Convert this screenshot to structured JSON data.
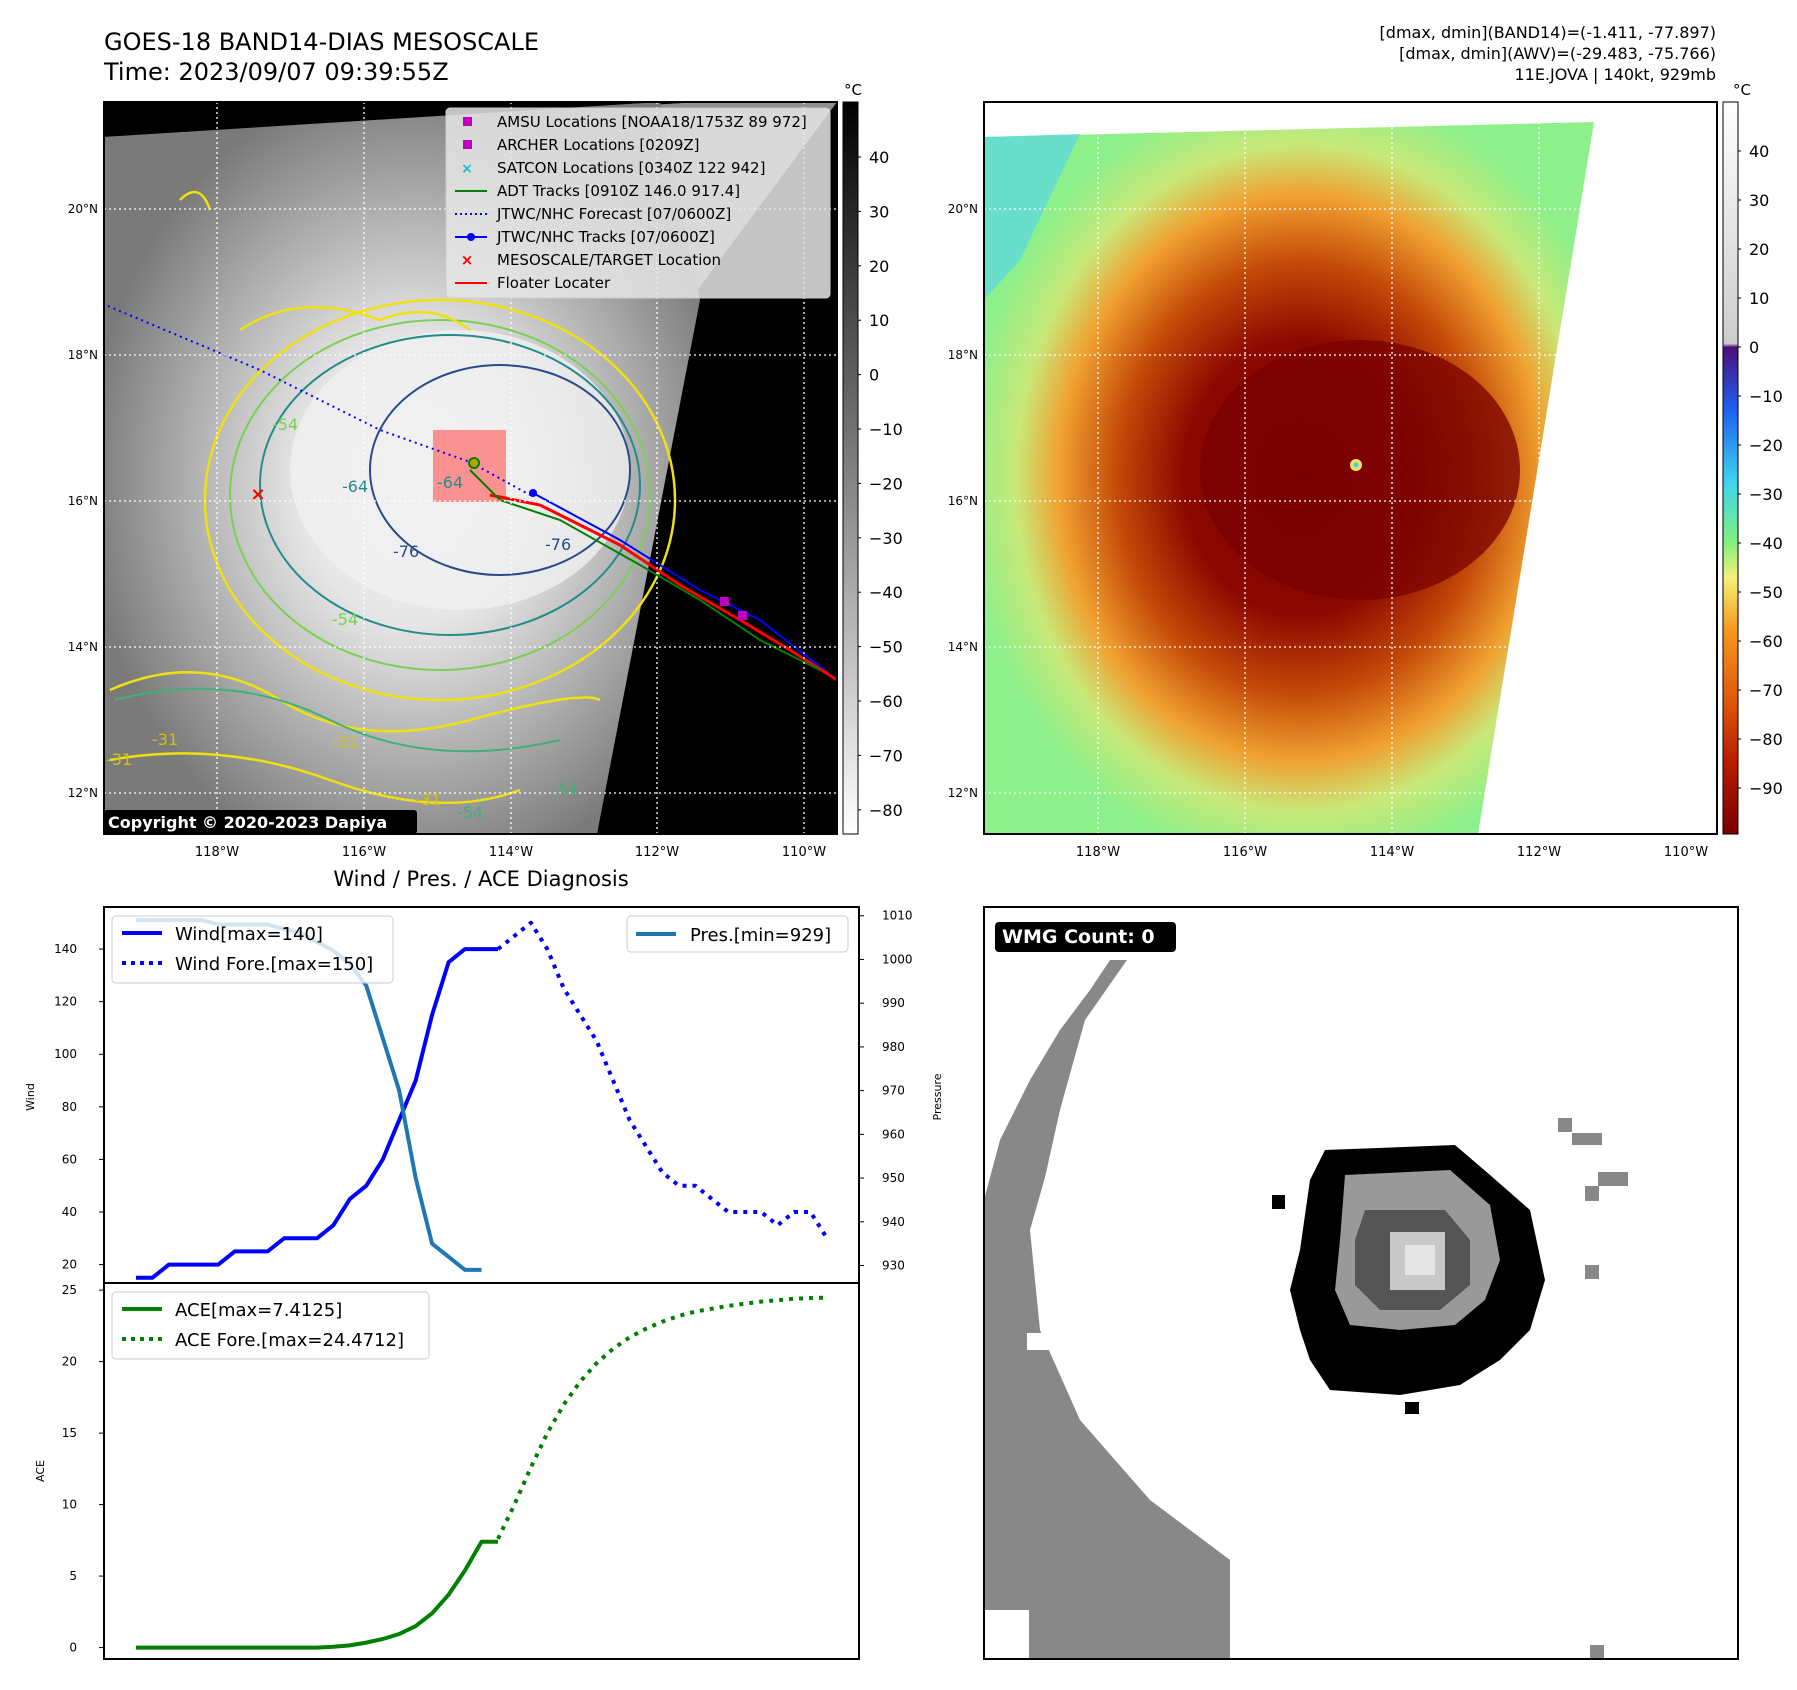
{
  "header": {
    "title_line1": "GOES-18 BAND14-DIAS MESOSCALE",
    "title_line2": "Time: 2023/09/07 09:39:55Z",
    "info_line1": "[dmax, dmin](BAND14)=(-1.411, -77.897)",
    "info_line2": "[dmax, dmin](AWV)=(-29.483, -75.766)",
    "info_line3": "11E.JOVA | 140kt, 929mb"
  },
  "maps": {
    "lon_labels": [
      "118°W",
      "116°W",
      "114°W",
      "112°W",
      "110°W"
    ],
    "lat_labels": [
      "20°N",
      "18°N",
      "16°N",
      "14°N",
      "12°N"
    ],
    "copyright": "Copyright © 2020-2023 Dapiya",
    "contour_labels": [
      "-54",
      "-64",
      "-76",
      "-76",
      "-54",
      "-31",
      "-31",
      "-31",
      "-54",
      "-54",
      "-31",
      "-64"
    ]
  },
  "legend": {
    "items": [
      {
        "label": "AMSU Locations [NOAA18/1753Z 89 972]",
        "color": "#bf00bf",
        "marker": "square"
      },
      {
        "label": "ARCHER Locations [0209Z]",
        "color": "#bf00bf",
        "marker": "square"
      },
      {
        "label": "SATCON Locations [0340Z 122 942]",
        "color": "#17becf",
        "marker": "x"
      },
      {
        "label": "ADT Tracks [0910Z 146.0 917.4]",
        "color": "#008000",
        "marker": "line"
      },
      {
        "label": "JTWC/NHC Forecast [07/0600Z]",
        "color": "#0000ff",
        "marker": "dotted"
      },
      {
        "label": "JTWC/NHC Tracks [07/0600Z]",
        "color": "#0000ff",
        "marker": "line-dot"
      },
      {
        "label": "MESOSCALE/TARGET Location",
        "color": "#ff0000",
        "marker": "x"
      },
      {
        "label": "Floater Locater",
        "color": "#ff0000",
        "marker": "line"
      }
    ]
  },
  "colorbars": {
    "gray": {
      "unit": "°C",
      "ticks": [
        "40",
        "30",
        "20",
        "10",
        "0",
        "−10",
        "−20",
        "−30",
        "−40",
        "−50",
        "−60",
        "−70",
        "−80"
      ]
    },
    "color": {
      "unit": "°C",
      "ticks": [
        "40",
        "30",
        "20",
        "10",
        "0",
        "−10",
        "−20",
        "−30",
        "−40",
        "−50",
        "−60",
        "−70",
        "−80",
        "−90"
      ]
    }
  },
  "wmg": {
    "label": "WMG Count: 0"
  },
  "chart_data": [
    {
      "type": "line",
      "title": "Wind / Pres. / ACE Diagnosis",
      "ylabel": "Wind",
      "ylabel_right": "Pressure",
      "ylim": [
        13,
        156
      ],
      "ylim_right": [
        926,
        1012
      ],
      "yticks": [
        20,
        40,
        60,
        80,
        100,
        120,
        140
      ],
      "yticks_right": [
        930,
        940,
        950,
        960,
        970,
        980,
        990,
        1000,
        1010
      ],
      "x": [
        0,
        1,
        2,
        3,
        4,
        5,
        6,
        7,
        8,
        9,
        10,
        11,
        12,
        13,
        14,
        15,
        16,
        17,
        18,
        19,
        20,
        21,
        22,
        23,
        24,
        25,
        26,
        27,
        28,
        29,
        30,
        31,
        32,
        33,
        34,
        35,
        36,
        37,
        38,
        39,
        40,
        41,
        42
      ],
      "series": [
        {
          "name": "Wind[max=140]",
          "color": "#0000ff",
          "style": "solid",
          "x": [
            0,
            1,
            2,
            3,
            4,
            5,
            6,
            7,
            8,
            9,
            10,
            11,
            12,
            13,
            14,
            15,
            16,
            17,
            18,
            19,
            20,
            21,
            22
          ],
          "values": [
            15,
            15,
            20,
            20,
            20,
            20,
            25,
            25,
            25,
            30,
            30,
            30,
            35,
            45,
            50,
            60,
            75,
            90,
            115,
            135,
            140,
            140,
            140
          ]
        },
        {
          "name": "Wind Fore.[max=150]",
          "color": "#0000ff",
          "style": "dotted",
          "x": [
            22,
            23,
            24,
            25,
            26,
            27,
            28,
            29,
            30,
            31,
            32,
            33,
            34,
            35,
            36,
            37,
            38,
            39,
            40,
            41,
            42
          ],
          "values": [
            140,
            145,
            150,
            140,
            125,
            115,
            105,
            90,
            75,
            65,
            55,
            50,
            50,
            45,
            40,
            40,
            40,
            35,
            40,
            40,
            30
          ]
        },
        {
          "name": "Pres.[min=929]",
          "color": "#1f77b4",
          "style": "solid",
          "axis": "right",
          "x": [
            0,
            1,
            2,
            3,
            4,
            5,
            6,
            7,
            8,
            9,
            10,
            11,
            12,
            13,
            14,
            15,
            16,
            17,
            18,
            19,
            20,
            21
          ],
          "values": [
            1009,
            1009,
            1009,
            1009,
            1009,
            1008,
            1008,
            1008,
            1008,
            1007,
            1006,
            1004,
            1002,
            999,
            994,
            982,
            970,
            950,
            935,
            932,
            929,
            929
          ]
        }
      ]
    },
    {
      "type": "line",
      "ylabel": "ACE",
      "ylim": [
        -0.8,
        25.5
      ],
      "yticks": [
        0,
        5,
        10,
        15,
        20,
        25
      ],
      "series": [
        {
          "name": "ACE[max=7.4125]",
          "color": "#008000",
          "style": "solid",
          "x": [
            0,
            2,
            4,
            6,
            8,
            10,
            11,
            12,
            13,
            14,
            15,
            16,
            17,
            18,
            19,
            20,
            21,
            22
          ],
          "values": [
            0,
            0,
            0,
            0,
            0,
            0,
            0,
            0.05,
            0.15,
            0.35,
            0.6,
            0.95,
            1.5,
            2.4,
            3.7,
            5.4,
            7.4,
            7.4
          ]
        },
        {
          "name": "ACE Fore.[max=24.4712]",
          "color": "#008000",
          "style": "dotted",
          "x": [
            22,
            23,
            24,
            25,
            26,
            27,
            28,
            29,
            30,
            31,
            32,
            33,
            34,
            35,
            36,
            37,
            38,
            39,
            40,
            41,
            42
          ],
          "values": [
            7.6,
            10.0,
            12.6,
            15.0,
            17.0,
            18.6,
            19.9,
            20.9,
            21.7,
            22.3,
            22.8,
            23.2,
            23.5,
            23.7,
            23.9,
            24.05,
            24.2,
            24.3,
            24.4,
            24.45,
            24.47
          ]
        }
      ]
    }
  ]
}
